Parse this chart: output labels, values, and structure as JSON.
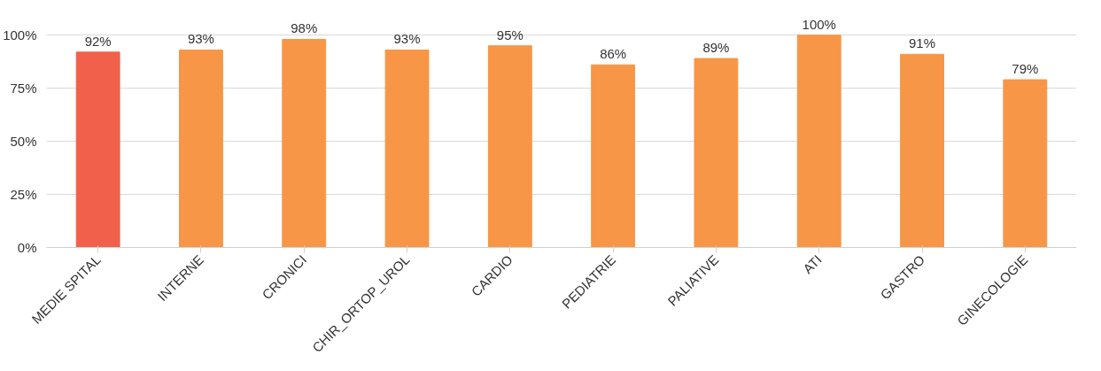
{
  "chart_data": {
    "type": "bar",
    "categories": [
      "MEDIE SPITAL",
      "INTERNE",
      "CRONICI",
      "CHIR_ORTOP_UROL",
      "CARDIO",
      "PEDIATRIE",
      "PALIATIVE",
      "ATI",
      "GASTRO",
      "GINECOLOGIE"
    ],
    "values": [
      92,
      93,
      98,
      93,
      95,
      86,
      89,
      100,
      91,
      79
    ],
    "colors": [
      "#f0604a",
      "#f79646",
      "#f79646",
      "#f79646",
      "#f79646",
      "#f79646",
      "#f79646",
      "#f79646",
      "#f79646",
      "#f79646"
    ],
    "value_labels": [
      "92%",
      "93%",
      "98%",
      "93%",
      "95%",
      "86%",
      "89%",
      "100%",
      "91%",
      "79%"
    ],
    "ylim": [
      0,
      100
    ],
    "yticks": [
      {
        "value": 0,
        "label": "0%"
      },
      {
        "value": 25,
        "label": "25%"
      },
      {
        "value": 50,
        "label": "50%"
      },
      {
        "value": 75,
        "label": "75%"
      },
      {
        "value": 100,
        "label": "100%"
      }
    ],
    "grid": "y"
  }
}
